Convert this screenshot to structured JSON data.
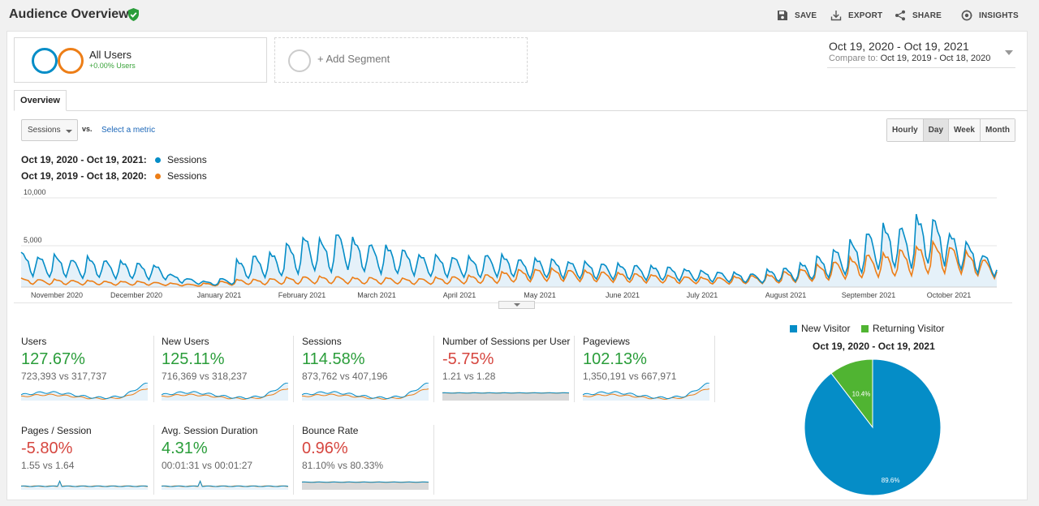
{
  "header": {
    "title": "Audience Overview",
    "actions": [
      {
        "label": "SAVE",
        "icon": "save-icon"
      },
      {
        "label": "EXPORT",
        "icon": "export-icon"
      },
      {
        "label": "SHARE",
        "icon": "share-icon"
      },
      {
        "label": "INSIGHTS",
        "icon": "insights-icon"
      }
    ]
  },
  "segments": {
    "active": {
      "name": "All Users",
      "sub": "+0.00% Users"
    },
    "add_label": "+ Add Segment"
  },
  "date": {
    "range": "Oct 19, 2020 - Oct 19, 2021",
    "compare_prefix": "Compare to:",
    "compare_range": "Oct 19, 2019 - Oct 18, 2020"
  },
  "tabs": {
    "overview": "Overview"
  },
  "controls": {
    "metric": "Sessions",
    "vs": "vs.",
    "select_metric": "Select a metric",
    "granularity": [
      "Hourly",
      "Day",
      "Week",
      "Month"
    ],
    "granularity_active": "Day"
  },
  "legend": [
    {
      "range": "Oct 19, 2020 - Oct 19, 2021:",
      "series": "Sessions",
      "color": "#058dc7"
    },
    {
      "range": "Oct 19, 2019 - Oct 18, 2020:",
      "series": "Sessions",
      "color": "#ed7e17"
    }
  ],
  "chart_data": [
    {
      "type": "line",
      "y_ticks": [
        "10,000",
        "5,000"
      ],
      "x_ticks": [
        "November 2020",
        "December 2020",
        "January 2021",
        "February 2021",
        "March 2021",
        "April 2021",
        "May 2021",
        "June 2021",
        "July 2021",
        "August 2021",
        "September 2021",
        "October 2021"
      ],
      "ylim": [
        0,
        10000
      ],
      "series": [
        {
          "name": "Sessions",
          "period": "Oct 19, 2020 - Oct 19, 2021",
          "color": "#058dc7",
          "filled": true,
          "weekly_peaks": [
            3600,
            3200,
            3300,
            2900,
            3100,
            2800,
            2700,
            2500,
            2300,
            1300,
            900,
            600,
            900,
            2800,
            3300,
            3600,
            4500,
            5300,
            4900,
            5700,
            5000,
            4500,
            4300,
            3900,
            3400,
            3300,
            3200,
            3100,
            3400,
            3300,
            2900,
            3000,
            2900,
            2700,
            2600,
            2500,
            2400,
            2300,
            2200,
            2100,
            1900,
            1700,
            1600,
            1500,
            1400,
            1800,
            2000,
            2500,
            3200,
            4000,
            4800,
            5800,
            6400,
            6300,
            7400,
            7100,
            5600,
            4600,
            3400
          ]
        },
        {
          "name": "Sessions",
          "period": "Oct 19, 2019 - Oct 18, 2020",
          "color": "#ed7e17",
          "filled": false,
          "weekly_peaks": [
            900,
            800,
            800,
            700,
            700,
            600,
            600,
            600,
            500,
            400,
            300,
            400,
            600,
            800,
            800,
            900,
            1000,
            1100,
            1100,
            1100,
            1000,
            1000,
            1000,
            900,
            900,
            1000,
            1100,
            1200,
            1300,
            1600,
            1800,
            1900,
            1900,
            1800,
            1700,
            1600,
            1500,
            1400,
            1300,
            1200,
            1100,
            1000,
            1000,
            1100,
            1200,
            1300,
            1600,
            1900,
            2300,
            2700,
            3000,
            3400,
            3500,
            3900,
            4300,
            4600,
            4300,
            3600,
            2900
          ]
        }
      ]
    },
    {
      "type": "pie",
      "title": "Oct 19, 2020 - Oct 19, 2021",
      "slices": [
        {
          "label": "New Visitor",
          "value": 89.6,
          "text": "89.6%",
          "color": "#058dc7"
        },
        {
          "label": "Returning Visitor",
          "value": 10.4,
          "text": "10.4%",
          "color": "#50b432"
        }
      ]
    }
  ],
  "metrics": [
    {
      "label": "Users",
      "change": "127.67%",
      "dir": "pos",
      "sub": "723,393 vs 317,737",
      "spark": "trend"
    },
    {
      "label": "New Users",
      "change": "125.11%",
      "dir": "pos",
      "sub": "716,369 vs 318,237",
      "spark": "trend"
    },
    {
      "label": "Sessions",
      "change": "114.58%",
      "dir": "pos",
      "sub": "873,762 vs 407,196",
      "spark": "trend"
    },
    {
      "label": "Number of Sessions per User",
      "change": "-5.75%",
      "dir": "neg",
      "sub": "1.21 vs 1.28",
      "spark": "flat"
    },
    {
      "label": "Pageviews",
      "change": "102.13%",
      "dir": "pos",
      "sub": "1,350,191 vs 667,971",
      "spark": "trend"
    },
    {
      "label": "Pages / Session",
      "change": "-5.80%",
      "dir": "neg",
      "sub": "1.55 vs 1.64",
      "spark": "low"
    },
    {
      "label": "Avg. Session Duration",
      "change": "4.31%",
      "dir": "pos",
      "sub": "00:01:31 vs 00:01:27",
      "spark": "low"
    },
    {
      "label": "Bounce Rate",
      "change": "0.96%",
      "dir": "neg",
      "sub": "81.10% vs 80.33%",
      "spark": "flat"
    }
  ]
}
